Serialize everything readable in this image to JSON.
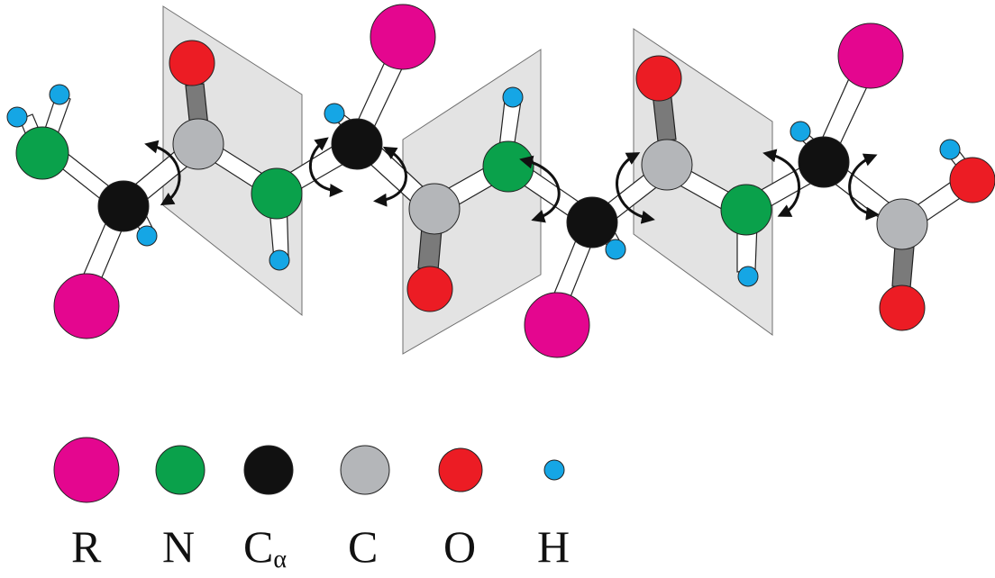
{
  "legend": {
    "items": [
      {
        "key": "R",
        "label": "R",
        "sub": "",
        "color": "#e4068f"
      },
      {
        "key": "N",
        "label": "N",
        "sub": "",
        "color": "#0aa14b"
      },
      {
        "key": "Ca",
        "label": "C",
        "sub": "α",
        "color": "#111111"
      },
      {
        "key": "C",
        "label": "C",
        "sub": "",
        "color": "#b4b6b9"
      },
      {
        "key": "O",
        "label": "O",
        "sub": "",
        "color": "#ec1c24"
      },
      {
        "key": "H",
        "label": "H",
        "sub": "",
        "color": "#15a6e5"
      }
    ]
  },
  "colors": {
    "plane_fill": "#dcdcdc",
    "plane_stroke": "#6f6f6f",
    "bond_fill": "#ffffff",
    "double_bond_fill": "#7a7a7a",
    "arrow": "#111111"
  }
}
